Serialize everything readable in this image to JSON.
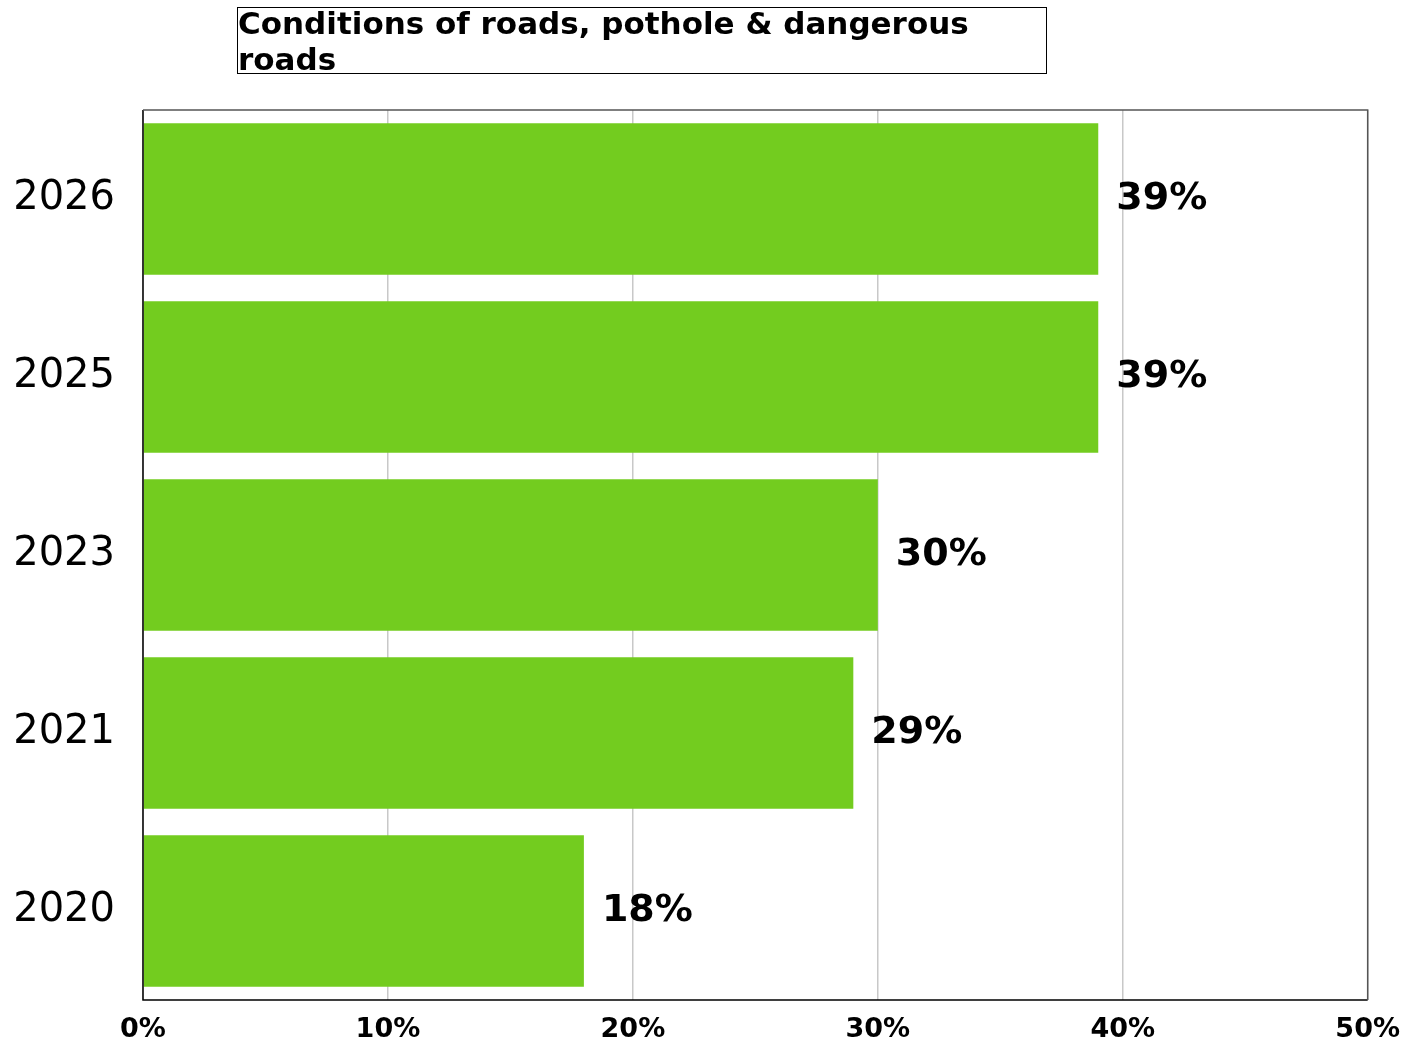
{
  "chart_data": {
    "type": "bar",
    "orientation": "horizontal",
    "title": "Conditions of roads, pothole & dangerous roads",
    "categories": [
      "2026",
      "2025",
      "2023",
      "2021",
      "2020"
    ],
    "values": [
      39,
      39,
      30,
      29,
      18
    ],
    "value_labels": [
      "39%",
      "39%",
      "30%",
      "29%",
      "18%"
    ],
    "color": "#73cc1f",
    "xlim": [
      0,
      50
    ],
    "xticks": [
      {
        "value": 0,
        "label": "0%"
      },
      {
        "value": 10,
        "label": "10%"
      },
      {
        "value": 20,
        "label": "20%"
      },
      {
        "value": 30,
        "label": "30%"
      },
      {
        "value": 40,
        "label": "40%"
      },
      {
        "value": 50,
        "label": "50%"
      }
    ],
    "grid": "x",
    "legend": false
  }
}
